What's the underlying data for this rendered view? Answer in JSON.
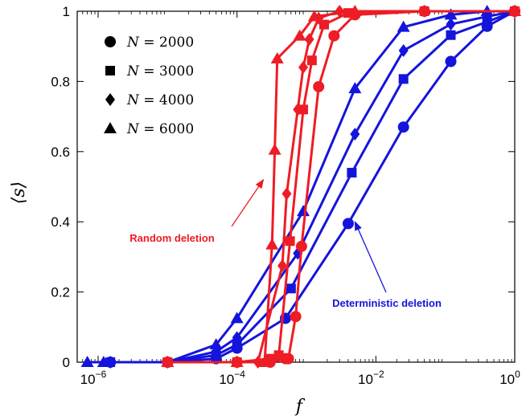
{
  "chart_data": {
    "type": "line",
    "title": "",
    "xlabel": "f",
    "ylabel": "⟨s⟩",
    "xscale": "log",
    "xlim": [
      5e-07,
      1
    ],
    "ylim": [
      0,
      1
    ],
    "xticks": [
      {
        "value": 1e-06,
        "base": "10",
        "exp": "−6"
      },
      {
        "value": 0.0001,
        "base": "10",
        "exp": "−4"
      },
      {
        "value": 0.01,
        "base": "10",
        "exp": "−2"
      },
      {
        "value": 1,
        "base": "10",
        "exp": "0"
      }
    ],
    "yticks": [
      {
        "value": 0,
        "label": "0"
      },
      {
        "value": 0.2,
        "label": "0.2"
      },
      {
        "value": 0.4,
        "label": "0.4"
      },
      {
        "value": 0.6,
        "label": "0.6"
      },
      {
        "value": 0.8,
        "label": "0.8"
      },
      {
        "value": 1,
        "label": "1"
      }
    ],
    "grid": false,
    "legend": {
      "placement": "top-left",
      "entries": [
        {
          "marker": "circle",
          "prefix": "N",
          "suffix": " = 2000"
        },
        {
          "marker": "square",
          "prefix": "N",
          "suffix": " = 3000"
        },
        {
          "marker": "diamond",
          "prefix": "N",
          "suffix": " = 4000"
        },
        {
          "marker": "triangle",
          "prefix": "N",
          "suffix": " = 6000"
        }
      ]
    },
    "colors": {
      "random": "#ee1c24",
      "deterministic": "#1414dc"
    },
    "annotations": [
      {
        "text": "Random deletion",
        "color": "#ee1c24",
        "arrow_to": [
          0.00024,
          0.52
        ]
      },
      {
        "text": "Deterministic deletion",
        "color": "#1414dc",
        "arrow_to": [
          0.005,
          0.4
        ]
      }
    ],
    "series": [
      {
        "group": "deterministic",
        "marker": "circle",
        "points": [
          [
            1.5e-06,
            0.0
          ],
          [
            1e-05,
            0.0
          ],
          [
            5e-05,
            0.01
          ],
          [
            0.0001,
            0.04
          ],
          [
            0.0005,
            0.125
          ],
          [
            0.004,
            0.395
          ],
          [
            0.025,
            0.67
          ],
          [
            0.12,
            0.857
          ],
          [
            0.4,
            0.957
          ],
          [
            1,
            1
          ]
        ]
      },
      {
        "group": "deterministic",
        "marker": "square",
        "points": [
          [
            1.5e-06,
            0.0
          ],
          [
            1e-05,
            0.0
          ],
          [
            5e-05,
            0.02
          ],
          [
            0.0001,
            0.05
          ],
          [
            0.0006,
            0.21
          ],
          [
            0.0045,
            0.54
          ],
          [
            0.025,
            0.807
          ],
          [
            0.12,
            0.932
          ],
          [
            0.4,
            0.97
          ],
          [
            1,
            1
          ]
        ]
      },
      {
        "group": "deterministic",
        "marker": "diamond",
        "points": [
          [
            1.5e-06,
            0.0
          ],
          [
            1e-05,
            0.0
          ],
          [
            5e-05,
            0.03
          ],
          [
            0.0001,
            0.07
          ],
          [
            0.00075,
            0.31
          ],
          [
            0.005,
            0.65
          ],
          [
            0.025,
            0.888
          ],
          [
            0.12,
            0.963
          ],
          [
            0.4,
            0.985
          ],
          [
            1,
            1
          ]
        ]
      },
      {
        "group": "deterministic",
        "marker": "triangle",
        "points": [
          [
            7e-07,
            0.0
          ],
          [
            1.2e-06,
            0.0
          ],
          [
            1e-05,
            0.0
          ],
          [
            5e-05,
            0.05
          ],
          [
            0.0001,
            0.125
          ],
          [
            0.0009,
            0.43
          ],
          [
            0.005,
            0.78
          ],
          [
            0.025,
            0.955
          ],
          [
            0.12,
            0.99
          ],
          [
            0.4,
            1
          ],
          [
            1,
            1
          ]
        ]
      },
      {
        "group": "random",
        "marker": "circle",
        "points": [
          [
            1e-05,
            0.0
          ],
          [
            0.0001,
            0.0
          ],
          [
            0.0003,
            0.0
          ],
          [
            0.0005,
            0.01
          ],
          [
            0.00055,
            0.01
          ],
          [
            0.0007,
            0.13
          ],
          [
            0.00085,
            0.33
          ],
          [
            0.0015,
            0.785
          ],
          [
            0.0025,
            0.93
          ],
          [
            0.005,
            0.99
          ],
          [
            0.05,
            1
          ],
          [
            1,
            1
          ]
        ]
      },
      {
        "group": "random",
        "marker": "square",
        "points": [
          [
            1e-05,
            0.0
          ],
          [
            0.0001,
            0.0
          ],
          [
            0.0003,
            0.01
          ],
          [
            0.0004,
            0.02
          ],
          [
            0.00058,
            0.345
          ],
          [
            0.0009,
            0.72
          ],
          [
            0.0012,
            0.86
          ],
          [
            0.0018,
            0.962
          ],
          [
            0.004,
            0.995
          ],
          [
            0.05,
            1
          ],
          [
            1,
            1
          ]
        ]
      },
      {
        "group": "random",
        "marker": "diamond",
        "points": [
          [
            1e-05,
            0.0
          ],
          [
            0.0001,
            0.0
          ],
          [
            0.0002,
            0.0
          ],
          [
            0.00045,
            0.275
          ],
          [
            0.00052,
            0.48
          ],
          [
            0.00075,
            0.72
          ],
          [
            0.0009,
            0.84
          ],
          [
            0.0011,
            0.92
          ],
          [
            0.0015,
            0.98
          ],
          [
            0.003,
            1
          ],
          [
            0.05,
            1
          ],
          [
            1,
            1
          ]
        ]
      },
      {
        "group": "random",
        "marker": "triangle",
        "points": [
          [
            1e-05,
            0.0
          ],
          [
            0.0001,
            0.0
          ],
          [
            0.00025,
            0.0
          ],
          [
            0.00032,
            0.335
          ],
          [
            0.00035,
            0.605
          ],
          [
            0.00038,
            0.865
          ],
          [
            0.0008,
            0.93
          ],
          [
            0.0013,
            0.985
          ],
          [
            0.005,
            1
          ],
          [
            1,
            1
          ]
        ]
      }
    ]
  }
}
